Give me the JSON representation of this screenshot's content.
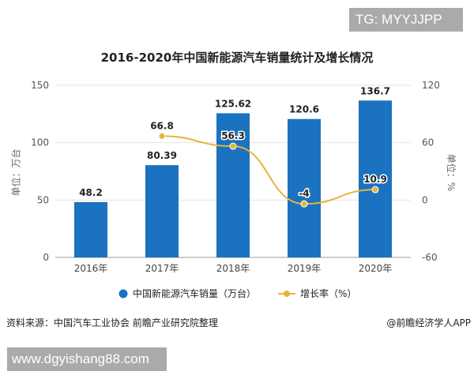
{
  "tag": "TG: MYYJJPP",
  "chart_data": {
    "type": "bar+line",
    "title": "2016-2020年中国新能源汽车销量统计及增长情况",
    "categories": [
      "2016年",
      "2017年",
      "2018年",
      "2019年",
      "2020年"
    ],
    "series": [
      {
        "name": "中国新能源汽车销量（万台）",
        "type": "bar",
        "axis": "left",
        "color": "#1a72c0",
        "values": [
          48.2,
          80.39,
          125.62,
          120.6,
          136.7
        ]
      },
      {
        "name": "增长率（%）",
        "type": "line",
        "axis": "right",
        "color": "#e3b53a",
        "values": [
          null,
          66.8,
          56.3,
          -4,
          10.9
        ]
      }
    ],
    "ylabel": "单位：万台",
    "ylim": [
      0,
      150
    ],
    "yticks": [
      0,
      50,
      100,
      150
    ],
    "y2label": "单位：%",
    "y2lim": [
      -60,
      120
    ],
    "y2ticks": [
      -60,
      0,
      60,
      120
    ],
    "grid": true,
    "legend": "bottom"
  },
  "footer": {
    "source": "资料来源：中国汽车工业协会 前瞻产业研究院整理",
    "credit": "@前瞻经济学人APP",
    "url": "www.dgyishang88.com"
  }
}
